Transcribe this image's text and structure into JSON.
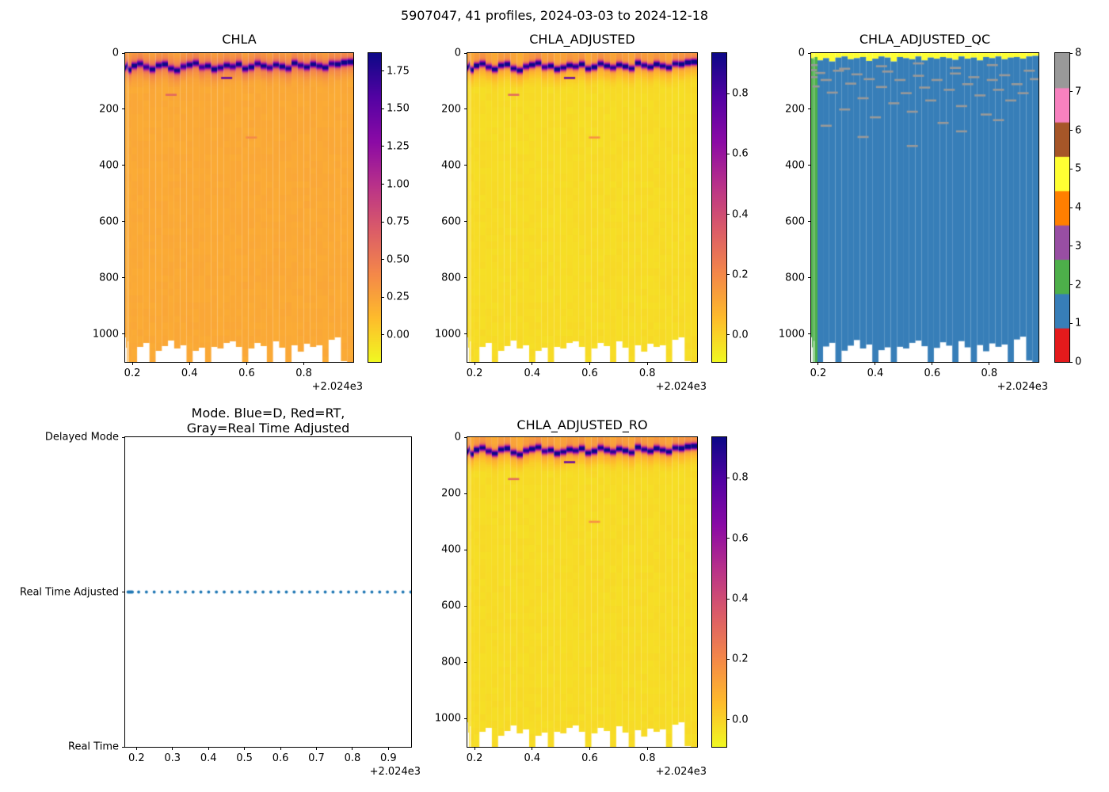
{
  "figure": {
    "suptitle": "5907047, 41 profiles, 2024-03-03 to 2024-12-18"
  },
  "profiles": {
    "count": 41,
    "x": [
      2024.1765,
      2024.1795,
      2024.1825,
      2024.1855,
      2024.1885,
      2024.206,
      2024.2276,
      2024.2492,
      2024.2708,
      2024.2924,
      2024.314,
      2024.3356,
      2024.3572,
      2024.3788,
      2024.4004,
      2024.422,
      2024.4436,
      2024.4652,
      2024.4868,
      2024.5084,
      2024.53,
      2024.5516,
      2024.5732,
      2024.5948,
      2024.6164,
      2024.638,
      2024.6596,
      2024.6812,
      2024.7028,
      2024.7244,
      2024.746,
      2024.7676,
      2024.7892,
      2024.8108,
      2024.8324,
      2024.854,
      2024.8756,
      2024.8972,
      2024.9188,
      2024.9404,
      2024.962
    ],
    "bottom_depth": [
      1012,
      1048,
      1100,
      1025,
      1100,
      1100,
      1045,
      1032,
      1100,
      1060,
      1042,
      1022,
      1052,
      1038,
      1100,
      1058,
      1048,
      1100,
      1046,
      1052,
      1032,
      1024,
      1044,
      1100,
      1050,
      1030,
      1042,
      1100,
      1026,
      1048,
      1100,
      1040,
      1062,
      1034,
      1046,
      1038,
      1100,
      1020,
      1010,
      1095,
      1100
    ],
    "dcm_depth": [
      52,
      48,
      42,
      55,
      60,
      45,
      38,
      50,
      58,
      44,
      40,
      55,
      62,
      48,
      42,
      36,
      50,
      46,
      58,
      52,
      44,
      48,
      40,
      56,
      50,
      38,
      46,
      52,
      42,
      48,
      55,
      36,
      44,
      50,
      40,
      46,
      52,
      38,
      40,
      34,
      32
    ],
    "dcm_peak_chla": [
      1.8,
      1.55,
      1.62,
      1.48,
      1.7,
      1.75,
      1.52,
      1.44,
      1.66,
      1.58,
      1.73,
      1.5,
      1.62,
      1.46,
      1.7,
      1.55,
      1.4,
      1.65,
      1.75,
      1.52,
      1.6,
      1.48,
      1.68,
      1.56,
      1.74,
      1.5,
      1.62,
      1.45,
      1.58,
      1.7,
      1.52,
      1.66,
      1.48,
      1.6,
      1.72,
      1.54,
      1.64,
      1.5,
      1.78,
      1.82,
      1.85
    ],
    "dcm_peak_adj": [
      0.9,
      0.78,
      0.81,
      0.74,
      0.85,
      0.88,
      0.76,
      0.72,
      0.83,
      0.79,
      0.86,
      0.75,
      0.81,
      0.73,
      0.85,
      0.78,
      0.7,
      0.82,
      0.88,
      0.76,
      0.8,
      0.74,
      0.84,
      0.78,
      0.87,
      0.75,
      0.81,
      0.72,
      0.79,
      0.85,
      0.76,
      0.83,
      0.74,
      0.8,
      0.86,
      0.77,
      0.82,
      0.75,
      0.89,
      0.91,
      0.92
    ],
    "qc_band": [
      18,
      20,
      16,
      22,
      14,
      26,
      18,
      30,
      16,
      12,
      22,
      18,
      14,
      28,
      20,
      12,
      16,
      30,
      14,
      18,
      22,
      12,
      26,
      16,
      20,
      14,
      18,
      24,
      12,
      20,
      16,
      26,
      14,
      18,
      12,
      22,
      16,
      14,
      20,
      12,
      10
    ]
  },
  "chart_data": [
    {
      "id": "chla",
      "type": "heatmap",
      "title": "CHLA",
      "x": {
        "range": [
          2024.175,
          2024.9728
        ],
        "ticks": [
          2024.2,
          2024.4,
          2024.6,
          2024.8
        ],
        "tick_labels": [
          "0.2",
          "0.4",
          "0.6",
          "0.8"
        ],
        "offset_label": "+2.024e3"
      },
      "y": {
        "range": [
          0,
          1100
        ],
        "ticks": [
          0,
          200,
          400,
          600,
          800,
          1000
        ],
        "tick_labels": [
          "0",
          "200",
          "400",
          "600",
          "800",
          "1000"
        ]
      },
      "color": {
        "colormap": "plasma_r",
        "vmin": -0.18,
        "vmax": 1.87
      },
      "colorbar": {
        "tick_values": [
          1.75,
          1.5,
          1.25,
          1.0,
          0.75,
          0.5,
          0.25,
          0.0
        ],
        "tick_labels": [
          "1.75",
          "1.50",
          "1.25",
          "1.00",
          "0.75",
          "0.50",
          "0.25",
          "0.00"
        ]
      },
      "field": {
        "deep": 0.22,
        "surface_bump": 0.02,
        "halo": 0.3,
        "halo_sigma": 38,
        "peak_sigma": 11,
        "peaks": "dcm_peak_chla"
      },
      "marks": [
        [
          20,
          88,
          1.5
        ],
        [
          11,
          148,
          0.62
        ],
        [
          24,
          300,
          0.4
        ]
      ]
    },
    {
      "id": "chla_adjusted",
      "type": "heatmap",
      "title": "CHLA_ADJUSTED",
      "x": {
        "range": [
          2024.175,
          2024.9728
        ],
        "ticks": [
          2024.2,
          2024.4,
          2024.6,
          2024.8
        ],
        "tick_labels": [
          "0.2",
          "0.4",
          "0.6",
          "0.8"
        ],
        "offset_label": "+2.024e3"
      },
      "y": {
        "range": [
          0,
          1100
        ],
        "ticks": [
          0,
          200,
          400,
          600,
          800,
          1000
        ],
        "tick_labels": [
          "0",
          "200",
          "400",
          "600",
          "800",
          "1000"
        ]
      },
      "color": {
        "colormap": "plasma_r",
        "vmin": -0.09,
        "vmax": 0.935
      },
      "colorbar": {
        "tick_values": [
          0.8,
          0.6,
          0.4,
          0.2,
          0.0
        ],
        "tick_labels": [
          "0.8",
          "0.6",
          "0.4",
          "0.2",
          "0.0"
        ]
      },
      "field": {
        "deep": -0.02,
        "surface_bump": 0.1,
        "halo": 0.16,
        "halo_sigma": 42,
        "peak_sigma": 11,
        "peaks": "dcm_peak_adj"
      },
      "marks": [
        [
          20,
          88,
          0.74
        ],
        [
          11,
          148,
          0.3
        ],
        [
          24,
          300,
          0.18
        ]
      ]
    },
    {
      "id": "chla_adjusted_qc",
      "type": "heatmap_discrete",
      "title": "CHLA_ADJUSTED_QC",
      "x": {
        "range": [
          2024.175,
          2024.9728
        ],
        "ticks": [
          2024.2,
          2024.4,
          2024.6,
          2024.8
        ],
        "tick_labels": [
          "0.2",
          "0.4",
          "0.6",
          "0.8"
        ],
        "offset_label": "+2.024e3"
      },
      "y": {
        "range": [
          0,
          1100
        ],
        "ticks": [
          0,
          200,
          400,
          600,
          800,
          1000
        ],
        "tick_labels": [
          "0",
          "200",
          "400",
          "600",
          "800",
          "1000"
        ]
      },
      "palette": [
        "#e41a1c",
        "#377eb8",
        "#4daf4a",
        "#984ea3",
        "#ff7f00",
        "#ffff33",
        "#a65628",
        "#f781bf",
        "#999999"
      ],
      "colorbar": {
        "vmin": 0,
        "vmax": 8,
        "n_colors": 9,
        "tick_values": [
          0,
          1,
          2,
          3,
          4,
          5,
          6,
          7,
          8
        ],
        "tick_labels": [
          "0",
          "1",
          "2",
          "3",
          "4",
          "5",
          "6",
          "7",
          "8"
        ]
      },
      "qc": {
        "interior_value": 1,
        "surface_band_value": 5,
        "green_value": 2,
        "green_profiles": [
          0,
          1,
          2,
          3,
          4
        ],
        "dash_value": 8,
        "dashes": [
          [
            2,
            60
          ],
          [
            3,
            85
          ],
          [
            4,
            118
          ],
          [
            5,
            70
          ],
          [
            6,
            95
          ],
          [
            7,
            140
          ],
          [
            8,
            62
          ],
          [
            9,
            200
          ],
          [
            10,
            108
          ],
          [
            11,
            75
          ],
          [
            12,
            160
          ],
          [
            13,
            92
          ],
          [
            14,
            228
          ],
          [
            15,
            120
          ],
          [
            16,
            65
          ],
          [
            17,
            178
          ],
          [
            18,
            95
          ],
          [
            19,
            142
          ],
          [
            20,
            208
          ],
          [
            21,
            80
          ],
          [
            22,
            122
          ],
          [
            23,
            168
          ],
          [
            24,
            95
          ],
          [
            25,
            248
          ],
          [
            26,
            130
          ],
          [
            27,
            72
          ],
          [
            28,
            188
          ],
          [
            29,
            110
          ],
          [
            30,
            85
          ],
          [
            31,
            150
          ],
          [
            32,
            218
          ],
          [
            33,
            95
          ],
          [
            34,
            130
          ],
          [
            35,
            78
          ],
          [
            36,
            168
          ],
          [
            37,
            110
          ],
          [
            38,
            142
          ],
          [
            39,
            62
          ],
          [
            40,
            92
          ],
          [
            6,
            258
          ],
          [
            12,
            298
          ],
          [
            20,
            330
          ],
          [
            28,
            278
          ],
          [
            34,
            238
          ],
          [
            3,
            42
          ],
          [
            9,
            55
          ],
          [
            15,
            46
          ],
          [
            21,
            36
          ],
          [
            27,
            52
          ],
          [
            33,
            42
          ]
        ]
      }
    },
    {
      "id": "mode",
      "type": "scatter",
      "title": "Mode. Blue=D, Red=RT,\nGray=Real Time Adjusted",
      "x": {
        "range": [
          2024.1685,
          2024.963
        ],
        "ticks": [
          2024.2,
          2024.3,
          2024.4,
          2024.5,
          2024.6,
          2024.7,
          2024.8,
          2024.9
        ],
        "tick_labels": [
          "0.2",
          "0.3",
          "0.4",
          "0.5",
          "0.6",
          "0.7",
          "0.8",
          "0.9"
        ],
        "offset_label": "+2.024e3"
      },
      "y": {
        "categories": [
          "Real Time",
          "Real Time Adjusted",
          "Delayed Mode"
        ]
      },
      "series": [
        {
          "name": "profile-mode",
          "color": "#1f77b4",
          "marker": "dot",
          "y_category": "Real Time Adjusted"
        }
      ]
    },
    {
      "id": "chla_adjusted_ro",
      "type": "heatmap",
      "title": "CHLA_ADJUSTED_RO",
      "x": {
        "range": [
          2024.175,
          2024.9728
        ],
        "ticks": [
          2024.2,
          2024.4,
          2024.6,
          2024.8
        ],
        "tick_labels": [
          "0.2",
          "0.4",
          "0.6",
          "0.8"
        ],
        "offset_label": "+2.024e3"
      },
      "y": {
        "range": [
          0,
          1100
        ],
        "ticks": [
          0,
          200,
          400,
          600,
          800,
          1000
        ],
        "tick_labels": [
          "0",
          "200",
          "400",
          "600",
          "800",
          "1000"
        ]
      },
      "color": {
        "colormap": "plasma_r",
        "vmin": -0.09,
        "vmax": 0.935
      },
      "colorbar": {
        "tick_values": [
          0.8,
          0.6,
          0.4,
          0.2,
          0.0
        ],
        "tick_labels": [
          "0.8",
          "0.6",
          "0.4",
          "0.2",
          "0.0"
        ]
      },
      "field": {
        "deep": -0.02,
        "surface_bump": 0.1,
        "halo": 0.16,
        "halo_sigma": 42,
        "peak_sigma": 11,
        "peaks": "dcm_peak_adj"
      },
      "marks": [
        [
          20,
          88,
          0.74
        ],
        [
          11,
          148,
          0.3
        ],
        [
          24,
          300,
          0.18
        ]
      ]
    }
  ]
}
